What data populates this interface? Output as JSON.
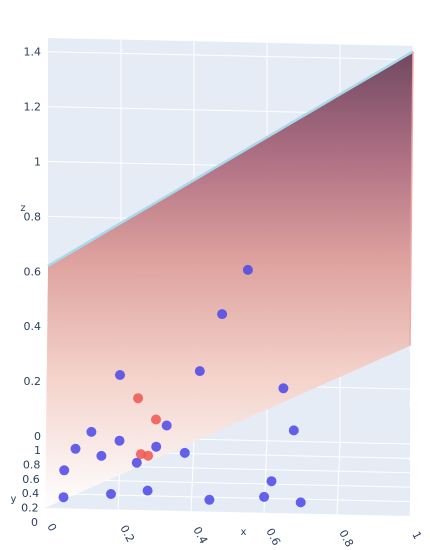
{
  "chart_data": {
    "type": "scatter3d",
    "title": "",
    "axes": {
      "x": {
        "label": "x",
        "range": [
          0,
          1
        ],
        "ticks": [
          "0",
          "0.2",
          "0.4",
          "0.6",
          "0.8",
          "1"
        ]
      },
      "y": {
        "label": "y",
        "range": [
          0,
          1
        ],
        "ticks": [
          "0",
          "0.2",
          "0.4",
          "0.6",
          "0.8",
          "1"
        ]
      },
      "z": {
        "label": "z",
        "range": [
          0,
          1.45
        ],
        "ticks": [
          "0",
          "0.2",
          "0.4",
          "0.6",
          "0.8",
          "1",
          "1.2",
          "1.4"
        ]
      }
    },
    "surface": {
      "type": "surface",
      "colorscale": [
        "#ffffff",
        "#f2b8ae",
        "#d98a8a",
        "#a45e73",
        "#6e4058"
      ],
      "edge_color": "#a8d8ea",
      "corner_values": [
        0.0,
        0.62,
        1.43,
        0.62
      ]
    },
    "series": [
      {
        "marker_color": "#4b46e8",
        "points": [
          [
            0.05,
            0.08,
            0.02
          ],
          [
            0.18,
            0.1,
            0.03
          ],
          [
            0.28,
            0.12,
            0.04
          ],
          [
            0.45,
            0.05,
            0.03
          ],
          [
            0.6,
            0.03,
            0.05
          ],
          [
            0.62,
            0.06,
            0.1
          ],
          [
            0.05,
            0.3,
            0.06
          ],
          [
            0.08,
            0.45,
            0.1
          ],
          [
            0.2,
            0.5,
            0.12
          ],
          [
            0.3,
            0.58,
            0.08
          ],
          [
            0.12,
            0.88,
            0.05
          ],
          [
            0.25,
            0.2,
            0.12
          ],
          [
            0.33,
            0.42,
            0.2
          ],
          [
            0.38,
            0.35,
            0.12
          ],
          [
            0.2,
            0.65,
            0.32
          ],
          [
            0.42,
            0.5,
            0.38
          ],
          [
            0.48,
            0.65,
            0.55
          ],
          [
            0.55,
            0.7,
            0.7
          ],
          [
            0.65,
            0.4,
            0.35
          ],
          [
            0.68,
            0.2,
            0.25
          ],
          [
            0.7,
            0.08,
            0.02
          ],
          [
            0.15,
            0.55,
            0.05
          ]
        ]
      },
      {
        "marker_color": "#f0554f",
        "points": [
          [
            0.25,
            0.6,
            0.25
          ],
          [
            0.3,
            0.5,
            0.2
          ],
          [
            0.28,
            0.3,
            0.12
          ],
          [
            0.26,
            0.32,
            0.12
          ]
        ]
      }
    ],
    "grid": true,
    "legend": "none"
  }
}
